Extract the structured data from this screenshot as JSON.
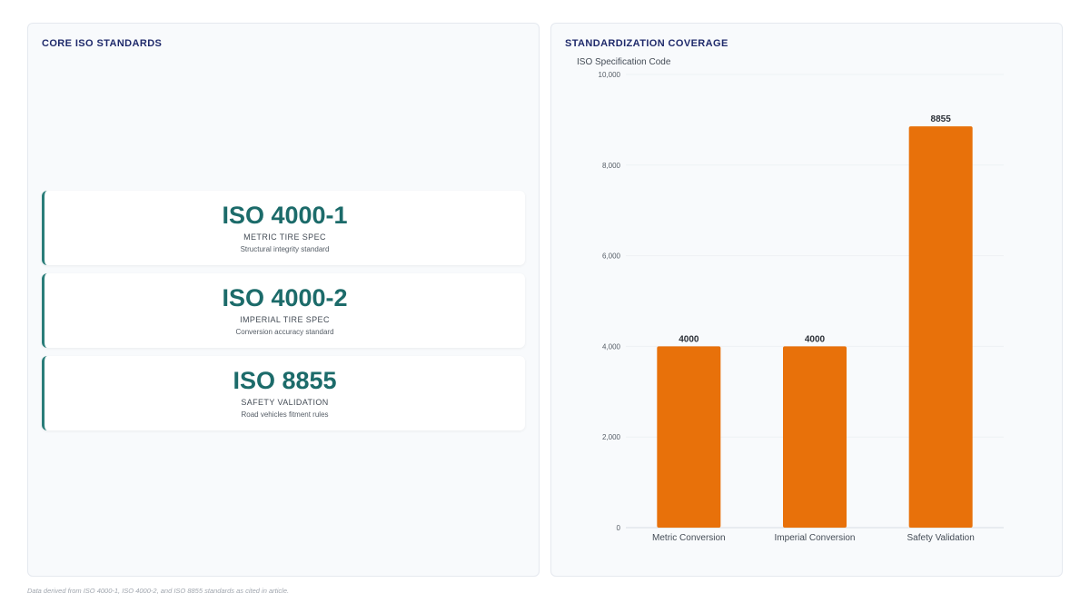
{
  "left_panel": {
    "title": "CORE ISO STANDARDS",
    "cards": [
      {
        "code": "ISO 4000-1",
        "name": "METRIC TIRE SPEC",
        "desc": "Structural integrity standard"
      },
      {
        "code": "ISO 4000-2",
        "name": "IMPERIAL TIRE SPEC",
        "desc": "Conversion accuracy standard"
      },
      {
        "code": "ISO 8855",
        "name": "SAFETY VALIDATION",
        "desc": "Road vehicles fitment rules"
      }
    ]
  },
  "right_panel": {
    "title": "STANDARDIZATION COVERAGE"
  },
  "chart_data": {
    "type": "bar",
    "title": "STANDARDIZATION COVERAGE",
    "xlabel": "",
    "ylabel": "ISO Specification Code",
    "categories": [
      "Metric Conversion",
      "Imperial Conversion",
      "Safety Validation"
    ],
    "values": [
      4000,
      4000,
      8855
    ],
    "data_labels": [
      "4000",
      "4000",
      "8855"
    ],
    "ylim": [
      0,
      10000
    ],
    "yticks": [
      0,
      2000,
      4000,
      6000,
      8000,
      10000
    ],
    "ytick_labels": [
      "0",
      "2,000",
      "4,000",
      "6,000",
      "8,000",
      "10,000"
    ],
    "bar_color": "#e8710a",
    "grid": true,
    "legend": "none"
  },
  "footnote": "Data derived from ISO 4000-1, ISO 4000-2, and ISO 8855 standards as cited in article.",
  "colors": {
    "accent": "#1c6b6a",
    "title": "#1f2a6b",
    "bar": "#e8710a"
  }
}
